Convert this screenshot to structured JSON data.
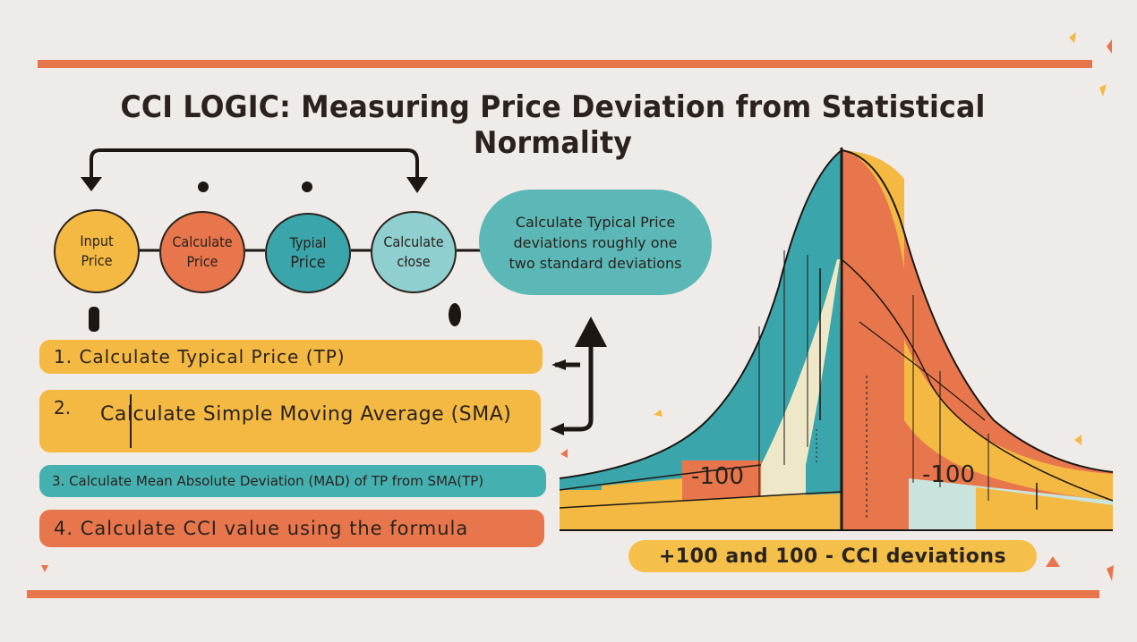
{
  "title": "CCI LOGIC: Measuring Price Deviation from Statistical Normality",
  "flow_nodes": [
    {
      "line1": "Input",
      "line2": "Price",
      "color": "#f4b942"
    },
    {
      "line1": "Calculate",
      "line2": "Price",
      "color": "#e8764c"
    },
    {
      "line1": "Typial",
      "line2": "Price",
      "color": "#3aa6ab"
    },
    {
      "line1": "Calculate",
      "line2": "cłose",
      "color": "#8fcfcf"
    }
  ],
  "bubble": {
    "line1": "Calculate Typical Price",
    "line2": "deviations roughly one",
    "line3": "two standard deviations"
  },
  "steps": {
    "step1": "1. Calculate Typical Price (TP)",
    "step2_num": "2.",
    "step2_text": "Calculate Simple Moving Average (SMA)",
    "step3": "3. Calculate Mean Absolute Deviation (MAD) of TP from SMA(TP)",
    "step4": "4. Calculate CCI value using the formula"
  },
  "curve_labels": {
    "left": "-100",
    "right": "-100"
  },
  "bottom_pill": "+100 and 100 - CCI deviations",
  "colors": {
    "background": "#efebe8",
    "orange": "#e8764c",
    "yellow": "#f4b942",
    "teal": "#3aa6ab",
    "light_teal": "#8fcfcf",
    "cream": "#f2ecd2",
    "ink": "#2a221e"
  }
}
